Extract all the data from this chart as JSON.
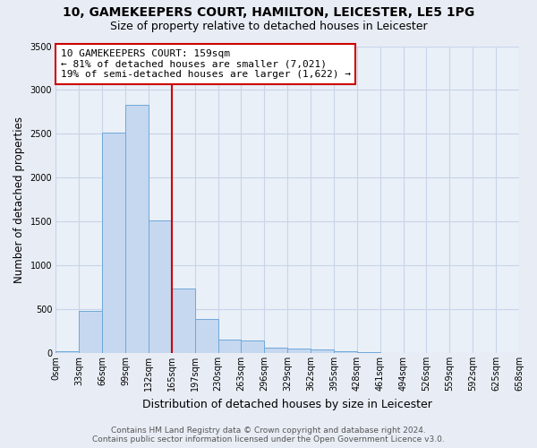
{
  "title": "10, GAMEKEEPERS COURT, HAMILTON, LEICESTER, LE5 1PG",
  "subtitle": "Size of property relative to detached houses in Leicester",
  "xlabel": "Distribution of detached houses by size in Leicester",
  "ylabel": "Number of detached properties",
  "footer_line1": "Contains HM Land Registry data © Crown copyright and database right 2024.",
  "footer_line2": "Contains public sector information licensed under the Open Government Licence v3.0.",
  "bin_labels": [
    "0sqm",
    "33sqm",
    "66sqm",
    "99sqm",
    "132sqm",
    "165sqm",
    "197sqm",
    "230sqm",
    "263sqm",
    "296sqm",
    "329sqm",
    "362sqm",
    "395sqm",
    "428sqm",
    "461sqm",
    "494sqm",
    "526sqm",
    "559sqm",
    "592sqm",
    "625sqm",
    "658sqm"
  ],
  "bar_values": [
    20,
    480,
    2510,
    2830,
    1510,
    740,
    390,
    150,
    140,
    60,
    50,
    40,
    25,
    10,
    5,
    0,
    0,
    0,
    0,
    0
  ],
  "bar_color": "#c5d8f0",
  "bar_edge_color": "#6fa8d8",
  "bar_linewidth": 0.7,
  "ylim": [
    0,
    3500
  ],
  "yticks": [
    0,
    500,
    1000,
    1500,
    2000,
    2500,
    3000,
    3500
  ],
  "red_line_x": 5,
  "red_line_color": "#cc0000",
  "annotation_text": "10 GAMEKEEPERS COURT: 159sqm\n← 81% of detached houses are smaller (7,021)\n19% of semi-detached houses are larger (1,622) →",
  "annotation_box_color": "#ffffff",
  "annotation_box_edge_color": "#cc0000",
  "grid_color": "#c8d4e8",
  "bg_color": "#e8edf5",
  "plot_area_color": "#eaf0f8",
  "title_fontsize": 10,
  "subtitle_fontsize": 9,
  "annotation_fontsize": 8,
  "tick_fontsize": 7,
  "xlabel_fontsize": 9,
  "ylabel_fontsize": 8.5,
  "footer_fontsize": 6.5
}
